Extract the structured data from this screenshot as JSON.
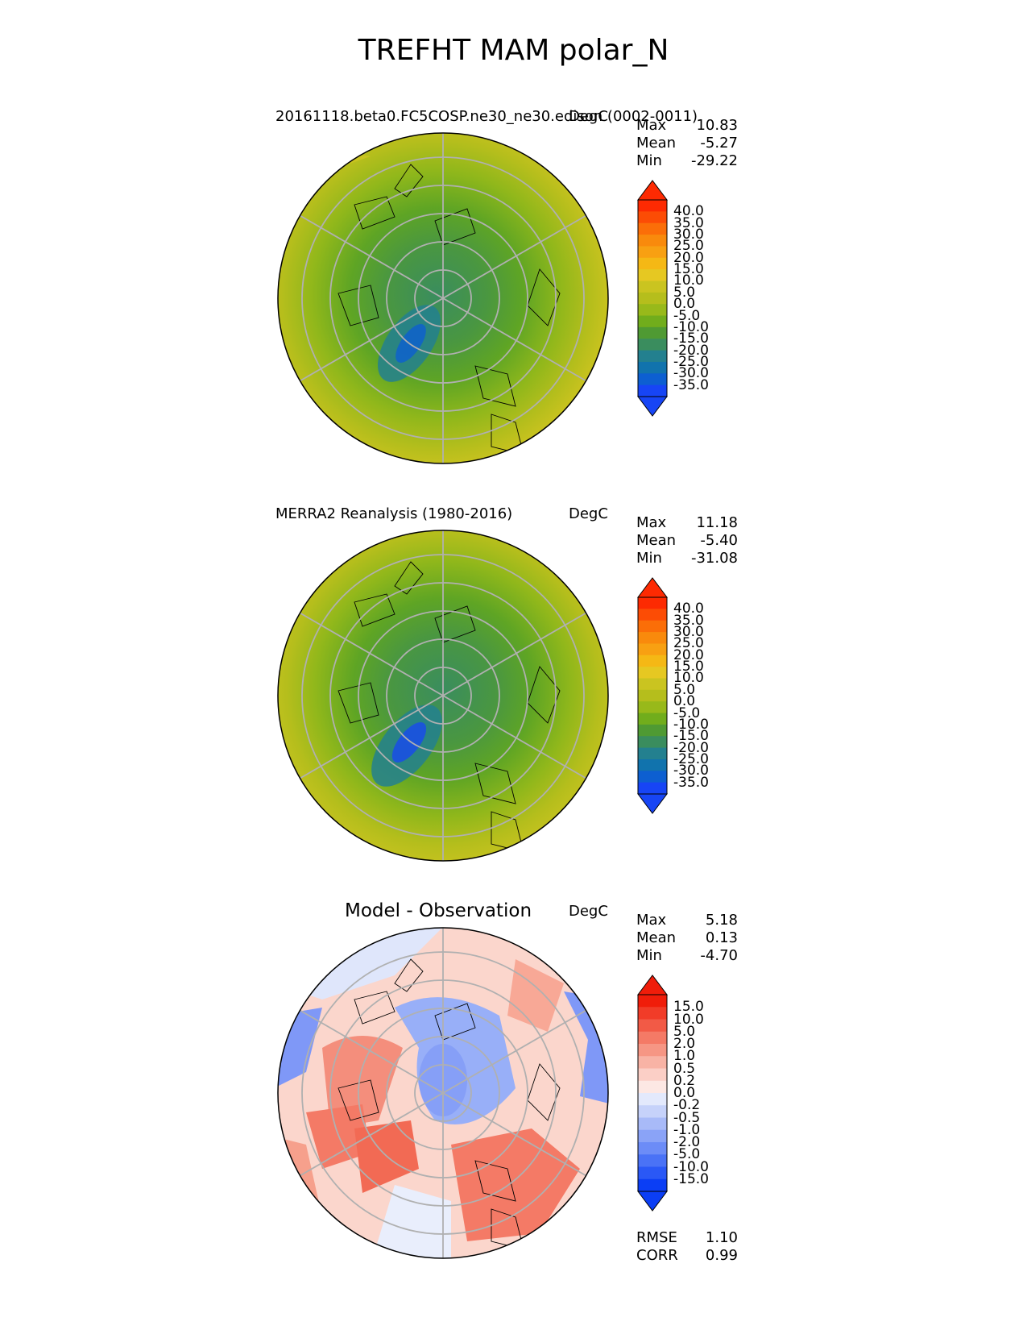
{
  "figure": {
    "title": "TREFHT MAM polar_N"
  },
  "colors": {
    "abs_levels": [
      "#1745f5",
      "#0d5fd1",
      "#1173ad",
      "#23808f",
      "#3a8d5e",
      "#4f9a33",
      "#71ad1c",
      "#98b91a",
      "#b5be1c",
      "#cac420",
      "#e6c822",
      "#f5b815",
      "#f8a012",
      "#f98a0c",
      "#fb6e08",
      "#fc4c05",
      "#fd2a02"
    ],
    "diff_levels": [
      "#0b3ef5",
      "#2a58f6",
      "#4a72f6",
      "#6c8cf7",
      "#8aa3f7",
      "#a8baf8",
      "#c6d2fa",
      "#e3e9fc",
      "#fde8e4",
      "#fbcfc6",
      "#f8b3a5",
      "#f69684",
      "#f47a66",
      "#f25a46",
      "#f13c28",
      "#f01d0a"
    ]
  },
  "panels": [
    {
      "title": "20161118.beta0.FC5COSP.ne30_ne30.edison (0002-0011)",
      "units": "DegC",
      "stats": [
        {
          "label": "Max",
          "value": "10.83"
        },
        {
          "label": "Mean",
          "value": "-5.27"
        },
        {
          "label": "Min",
          "value": "-29.22"
        }
      ],
      "colorbar_ticks": [
        "40.0",
        "35.0",
        "30.0",
        "25.0",
        "20.0",
        "15.0",
        "10.0",
        "5.0",
        "0.0",
        "-5.0",
        "-10.0",
        "-15.0",
        "-20.0",
        "-25.0",
        "-30.0",
        "-35.0"
      ]
    },
    {
      "title": "MERRA2 Reanalysis (1980-2016)",
      "units": "DegC",
      "stats": [
        {
          "label": "Max",
          "value": "11.18"
        },
        {
          "label": "Mean",
          "value": "-5.40"
        },
        {
          "label": "Min",
          "value": "-31.08"
        }
      ],
      "colorbar_ticks": [
        "40.0",
        "35.0",
        "30.0",
        "25.0",
        "20.0",
        "15.0",
        "10.0",
        "5.0",
        "0.0",
        "-5.0",
        "-10.0",
        "-15.0",
        "-20.0",
        "-25.0",
        "-30.0",
        "-35.0"
      ]
    },
    {
      "title": "Model - Observation",
      "units": "DegC",
      "stats": [
        {
          "label": "Max",
          "value": "5.18"
        },
        {
          "label": "Mean",
          "value": "0.13"
        },
        {
          "label": "Min",
          "value": "-4.70"
        }
      ],
      "colorbar_ticks": [
        "15.0",
        "10.0",
        "5.0",
        "2.0",
        "1.0",
        "0.5",
        "0.2",
        "0.0",
        "-0.2",
        "-0.5",
        "-1.0",
        "-2.0",
        "-5.0",
        "-10.0",
        "-15.0"
      ],
      "metrics": [
        {
          "label": "RMSE",
          "value": "1.10"
        },
        {
          "label": "CORR",
          "value": "0.99"
        }
      ]
    }
  ]
}
